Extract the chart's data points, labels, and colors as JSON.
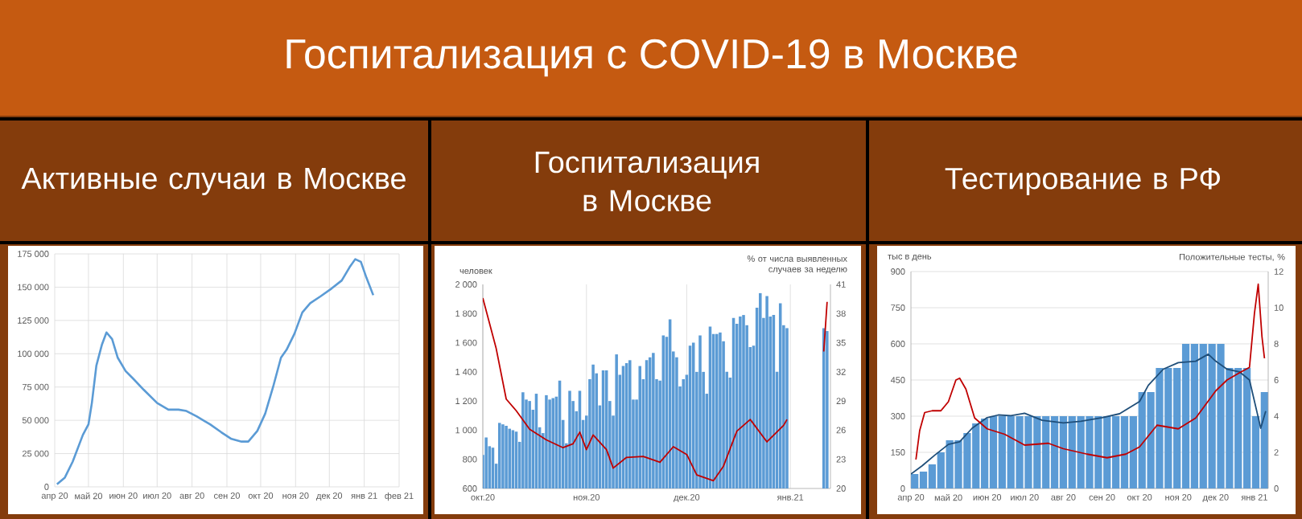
{
  "chart_data": [
    {
      "type": "other",
      "title": "Госпитализация с COVID-19 в Москве"
    },
    {
      "type": "line",
      "title": "Активные случаи в Москве",
      "color": "#5b9bd5",
      "grid": true,
      "x": [
        "2020-04-03",
        "2020-04-10",
        "2020-04-17",
        "2020-04-26",
        "2020-05-01",
        "2020-05-04",
        "2020-05-08",
        "2020-05-13",
        "2020-05-17",
        "2020-05-22",
        "2020-05-27",
        "2020-06-03",
        "2020-06-10",
        "2020-06-19",
        "2020-07-01",
        "2020-07-11",
        "2020-07-20",
        "2020-07-27",
        "2020-08-05",
        "2020-08-17",
        "2020-08-27",
        "2020-09-05",
        "2020-09-14",
        "2020-09-20",
        "2020-09-28",
        "2020-10-05",
        "2020-10-12",
        "2020-10-19",
        "2020-10-24",
        "2020-10-31",
        "2020-11-07",
        "2020-11-14",
        "2020-11-23",
        "2020-12-03",
        "2020-12-12",
        "2020-12-19",
        "2020-12-24",
        "2020-12-29",
        "2021-01-03",
        "2021-01-09"
      ],
      "values": [
        2000,
        7000,
        19000,
        39000,
        47000,
        63000,
        91000,
        107000,
        116000,
        111000,
        97000,
        87000,
        81000,
        73000,
        63000,
        58000,
        58000,
        57000,
        53000,
        47000,
        41000,
        36000,
        34000,
        34000,
        42000,
        55000,
        75000,
        97000,
        103000,
        115000,
        131000,
        138000,
        143000,
        149000,
        155000,
        165000,
        171000,
        169000,
        157000,
        144000
      ],
      "xlim": [
        "2020-04-01",
        "2021-02-01"
      ],
      "xticks": [
        {
          "value": "2020-04-01",
          "label": "апр 20"
        },
        {
          "value": "2020-05-01",
          "label": "май 20"
        },
        {
          "value": "2020-06-01",
          "label": "июн 20"
        },
        {
          "value": "2020-07-01",
          "label": "июл 20"
        },
        {
          "value": "2020-08-01",
          "label": "авг 20"
        },
        {
          "value": "2020-09-01",
          "label": "сен 20"
        },
        {
          "value": "2020-10-01",
          "label": "окт 20"
        },
        {
          "value": "2020-11-01",
          "label": "ноя 20"
        },
        {
          "value": "2020-12-01",
          "label": "дек 20"
        },
        {
          "value": "2021-01-01",
          "label": "янв 21"
        },
        {
          "value": "2021-02-01",
          "label": "фев 21"
        }
      ],
      "ylim": [
        0,
        175000
      ],
      "yticks": [
        0,
        {
          "value": 25000,
          "label": "25 000"
        },
        {
          "value": 50000,
          "label": "50 000"
        },
        {
          "value": 75000,
          "label": "75 000"
        },
        {
          "value": 100000,
          "label": "100 000"
        },
        {
          "value": 125000,
          "label": "125 000"
        },
        {
          "value": 150000,
          "label": "150 000"
        },
        {
          "value": 175000,
          "label": "175 000"
        }
      ]
    },
    {
      "type": "bar",
      "title": "Госпитализация в Москве",
      "ylabel": "человек",
      "y2label": "% от числа выявленных случаев за неделю",
      "grid": "x",
      "xlim": [
        "2020-10-01",
        "2021-01-13"
      ],
      "xticks": [
        {
          "value": "2020-10-01",
          "label": "окт.20"
        },
        {
          "value": "2020-11-01",
          "label": "ноя.20"
        },
        {
          "value": "2020-12-01",
          "label": "дек.20"
        },
        {
          "value": "2021-01-01",
          "label": "янв.21"
        }
      ],
      "ylim": [
        600,
        2000
      ],
      "yticks": [
        600,
        800,
        {
          "value": 1000,
          "label": "1 000"
        },
        {
          "value": 1200,
          "label": "1 200"
        },
        {
          "value": 1400,
          "label": "1 400"
        },
        {
          "value": 1600,
          "label": "1 600"
        },
        {
          "value": 1800,
          "label": "1 800"
        },
        {
          "value": 2000,
          "label": "2 000"
        }
      ],
      "y2lim": [
        20,
        41
      ],
      "y2ticks": [
        20,
        23,
        26,
        29,
        32,
        35,
        38,
        41
      ],
      "series": [
        {
          "type": "bar",
          "color": "#5b9bd5",
          "x": [
            "2020-10-01",
            "2020-10-02",
            "2020-10-03",
            "2020-10-04",
            "2020-10-05",
            "2020-10-06",
            "2020-10-07",
            "2020-10-08",
            "2020-10-09",
            "2020-10-10",
            "2020-10-11",
            "2020-10-12",
            "2020-10-13",
            "2020-10-14",
            "2020-10-15",
            "2020-10-16",
            "2020-10-17",
            "2020-10-18",
            "2020-10-19",
            "2020-10-20",
            "2020-10-21",
            "2020-10-22",
            "2020-10-23",
            "2020-10-24",
            "2020-10-25",
            "2020-10-26",
            "2020-10-27",
            "2020-10-28",
            "2020-10-29",
            "2020-10-30",
            "2020-10-31",
            "2020-11-01",
            "2020-11-02",
            "2020-11-03",
            "2020-11-04",
            "2020-11-05",
            "2020-11-06",
            "2020-11-07",
            "2020-11-08",
            "2020-11-09",
            "2020-11-10",
            "2020-11-11",
            "2020-11-12",
            "2020-11-13",
            "2020-11-14",
            "2020-11-15",
            "2020-11-16",
            "2020-11-17",
            "2020-11-18",
            "2020-11-19",
            "2020-11-20",
            "2020-11-21",
            "2020-11-22",
            "2020-11-23",
            "2020-11-24",
            "2020-11-25",
            "2020-11-26",
            "2020-11-27",
            "2020-11-28",
            "2020-11-29",
            "2020-11-30",
            "2020-12-01",
            "2020-12-02",
            "2020-12-03",
            "2020-12-04",
            "2020-12-05",
            "2020-12-06",
            "2020-12-07",
            "2020-12-08",
            "2020-12-09",
            "2020-12-10",
            "2020-12-11",
            "2020-12-12",
            "2020-12-13",
            "2020-12-14",
            "2020-12-15",
            "2020-12-16",
            "2020-12-17",
            "2020-12-18",
            "2020-12-19",
            "2020-12-20",
            "2020-12-21",
            "2020-12-22",
            "2020-12-23",
            "2020-12-24",
            "2020-12-25",
            "2020-12-26",
            "2020-12-27",
            "2020-12-28",
            "2020-12-29",
            "2020-12-30",
            "2020-12-31",
            "2021-01-11",
            "2021-01-12"
          ],
          "values": [
            830,
            950,
            890,
            880,
            770,
            1050,
            1040,
            1030,
            1010,
            1000,
            990,
            920,
            1260,
            1210,
            1200,
            1140,
            1250,
            1020,
            980,
            1240,
            1210,
            1220,
            1230,
            1340,
            1070,
            910,
            1270,
            1200,
            1130,
            1270,
            1070,
            1100,
            1350,
            1450,
            1390,
            1170,
            1410,
            1410,
            1200,
            1100,
            1520,
            1380,
            1440,
            1460,
            1480,
            1210,
            1210,
            1440,
            1350,
            1480,
            1500,
            1530,
            1350,
            1340,
            1650,
            1640,
            1760,
            1540,
            1500,
            1300,
            1350,
            1380,
            1580,
            1600,
            1400,
            1650,
            1400,
            1250,
            1710,
            1660,
            1660,
            1670,
            1610,
            1400,
            1360,
            1770,
            1730,
            1780,
            1790,
            1720,
            1570,
            1580,
            1840,
            1940,
            1770,
            1920,
            1780,
            1790,
            1400,
            1870,
            1720,
            1700,
            1700,
            1680
          ]
        },
        {
          "type": "line",
          "axis": "y2",
          "color": "#c00000",
          "x": [
            "2020-10-01",
            "2020-10-05",
            "2020-10-08",
            "2020-10-11",
            "2020-10-15",
            "2020-10-20",
            "2020-10-25",
            "2020-10-28",
            "2020-10-30",
            "2020-11-01",
            "2020-11-03",
            "2020-11-07",
            "2020-11-09",
            "2020-11-13",
            "2020-11-18",
            "2020-11-23",
            "2020-11-27",
            "2020-12-01",
            "2020-12-04",
            "2020-12-09",
            "2020-12-12",
            "2020-12-16",
            "2020-12-20",
            "2020-12-25",
            "2020-12-30",
            "2020-12-31",
            "2021-01-05",
            "2021-01-11",
            "2021-01-12"
          ],
          "values": [
            39.6,
            34.4,
            29.2,
            28.0,
            26.1,
            25.0,
            24.2,
            24.6,
            25.8,
            24.0,
            25.5,
            24.0,
            22.1,
            23.2,
            23.3,
            22.7,
            24.3,
            23.5,
            21.4,
            20.8,
            22.3,
            25.9,
            27.1,
            24.8,
            26.5,
            27.1,
            null,
            34.1,
            39.2
          ]
        }
      ]
    },
    {
      "type": "bar",
      "title": "Тестирование в РФ",
      "ylabel": "тыс в день",
      "y2label": "Положительные тесты, %",
      "grid": "y",
      "xlim": [
        "2020-04-01",
        "2021-01-12"
      ],
      "xticks": [
        {
          "value": "2020-04-01",
          "label": "апр 20"
        },
        {
          "value": "2020-05-01",
          "label": "май 20"
        },
        {
          "value": "2020-06-01",
          "label": "июн 20"
        },
        {
          "value": "2020-07-01",
          "label": "июл 20"
        },
        {
          "value": "2020-08-01",
          "label": "авг 20"
        },
        {
          "value": "2020-09-01",
          "label": "сен 20"
        },
        {
          "value": "2020-10-01",
          "label": "окт 20"
        },
        {
          "value": "2020-11-01",
          "label": "ноя 20"
        },
        {
          "value": "2020-12-01",
          "label": "дек 20"
        },
        {
          "value": "2021-01-01",
          "label": "янв 21"
        }
      ],
      "ylim": [
        0,
        900
      ],
      "yticks": [
        0,
        150,
        300,
        450,
        600,
        750,
        900
      ],
      "y2lim": [
        0,
        12
      ],
      "y2ticks": [
        0,
        2,
        4,
        6,
        8,
        10,
        12
      ],
      "series": [
        {
          "type": "bar",
          "color": "#5b9bd5",
          "x": [
            "2020-04-04",
            "2020-04-11",
            "2020-04-18",
            "2020-04-25",
            "2020-05-02",
            "2020-05-09",
            "2020-05-16",
            "2020-05-23",
            "2020-05-30",
            "2020-06-06",
            "2020-06-13",
            "2020-06-20",
            "2020-06-27",
            "2020-07-04",
            "2020-07-11",
            "2020-07-18",
            "2020-07-25",
            "2020-08-01",
            "2020-08-08",
            "2020-08-15",
            "2020-08-22",
            "2020-08-29",
            "2020-09-05",
            "2020-09-12",
            "2020-09-19",
            "2020-09-26",
            "2020-10-03",
            "2020-10-10",
            "2020-10-17",
            "2020-10-24",
            "2020-10-31",
            "2020-11-07",
            "2020-11-14",
            "2020-11-21",
            "2020-11-28",
            "2020-12-05",
            "2020-12-12",
            "2020-12-19",
            "2020-12-26",
            "2021-01-02",
            "2021-01-09"
          ],
          "values": [
            60,
            70,
            100,
            150,
            200,
            200,
            230,
            270,
            290,
            300,
            300,
            300,
            300,
            300,
            300,
            300,
            300,
            300,
            300,
            300,
            300,
            300,
            300,
            300,
            300,
            300,
            400,
            400,
            500,
            500,
            500,
            600,
            600,
            600,
            600,
            600,
            500,
            500,
            500,
            300,
            400
          ]
        },
        {
          "type": "line",
          "color": "#1f4e79",
          "x": [
            "2020-04-01",
            "2020-04-10",
            "2020-04-20",
            "2020-05-01",
            "2020-05-10",
            "2020-05-20",
            "2020-06-01",
            "2020-06-10",
            "2020-06-20",
            "2020-07-01",
            "2020-07-15",
            "2020-08-01",
            "2020-08-15",
            "2020-09-01",
            "2020-09-15",
            "2020-10-01",
            "2020-10-08",
            "2020-10-20",
            "2020-11-01",
            "2020-11-15",
            "2020-11-25",
            "2020-12-01",
            "2020-12-10",
            "2020-12-20",
            "2020-12-28",
            "2021-01-03",
            "2021-01-06",
            "2021-01-10"
          ],
          "values": [
            60,
            94,
            138,
            183,
            194,
            250,
            294,
            305,
            302,
            312,
            283,
            272,
            279,
            294,
            310,
            361,
            428,
            495,
            522,
            528,
            557,
            528,
            495,
            484,
            450,
            317,
            250,
            321
          ]
        },
        {
          "type": "line",
          "axis": "y2",
          "color": "#c00000",
          "x": [
            "2020-04-05",
            "2020-04-08",
            "2020-04-12",
            "2020-04-18",
            "2020-04-25",
            "2020-05-01",
            "2020-05-07",
            "2020-05-10",
            "2020-05-15",
            "2020-05-22",
            "2020-06-01",
            "2020-06-15",
            "2020-07-01",
            "2020-07-20",
            "2020-08-01",
            "2020-08-20",
            "2020-09-05",
            "2020-09-20",
            "2020-10-01",
            "2020-10-15",
            "2020-11-01",
            "2020-11-15",
            "2020-12-01",
            "2020-12-10",
            "2020-12-20",
            "2020-12-28",
            "2021-01-01",
            "2021-01-04",
            "2021-01-07",
            "2021-01-09"
          ],
          "values": [
            1.6,
            3.2,
            4.2,
            4.3,
            4.3,
            4.8,
            6.0,
            6.1,
            5.5,
            3.9,
            3.3,
            3.0,
            2.4,
            2.5,
            2.2,
            1.9,
            1.7,
            1.9,
            2.3,
            3.5,
            3.3,
            3.9,
            5.4,
            6.0,
            6.4,
            6.7,
            9.7,
            11.3,
            8.4,
            7.2
          ]
        }
      ]
    }
  ]
}
